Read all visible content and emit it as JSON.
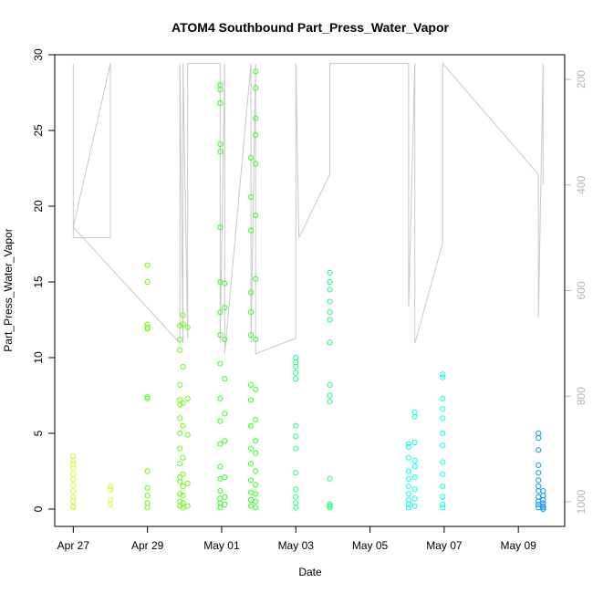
{
  "chart_data": {
    "type": "scatter",
    "title": "ATOM4 Southbound Part_Press_Water_Vapor",
    "xlabel": "Date",
    "ylabel": "Part_Press_Water_Vapor",
    "x_type": "date",
    "xlim": [
      "2018-04-26T12:00",
      "2018-05-10T06:00"
    ],
    "ylim": [
      0,
      30
    ],
    "x_ticks": [
      {
        "value": "2018-04-27",
        "label": "Apr 27"
      },
      {
        "value": "2018-04-29",
        "label": "Apr 29"
      },
      {
        "value": "2018-05-01",
        "label": "May 01"
      },
      {
        "value": "2018-05-03",
        "label": "May 03"
      },
      {
        "value": "2018-05-05",
        "label": "May 05"
      },
      {
        "value": "2018-05-07",
        "label": "May 07"
      },
      {
        "value": "2018-05-09",
        "label": "May 09"
      }
    ],
    "y_ticks": [
      0,
      5,
      10,
      15,
      20,
      25,
      30
    ],
    "secondary_axis": {
      "side": "right",
      "reversed": true,
      "range": [
        1030,
        170
      ],
      "ticks": [
        200,
        400,
        600,
        800,
        1000
      ],
      "color": "#b5b5b5"
    },
    "grid": false,
    "marker": "open-circle",
    "color_note": "points colored by date, yellow-green to azure",
    "series": [
      {
        "color": "#ccff33",
        "points": [
          [
            "2018-04-27T00:00",
            0.2
          ],
          [
            "2018-04-27T00:00",
            0.5
          ],
          [
            "2018-04-27T00:00",
            0.8
          ],
          [
            "2018-04-27T00:00",
            1.2
          ],
          [
            "2018-04-27T00:00",
            1.6
          ],
          [
            "2018-04-27T00:00",
            2.0
          ],
          [
            "2018-04-27T00:00",
            2.3
          ],
          [
            "2018-04-27T00:00",
            2.7
          ],
          [
            "2018-04-27T00:00",
            3.0
          ],
          [
            "2018-04-27T00:00",
            3.2
          ],
          [
            "2018-04-27T00:00",
            3.5
          ],
          [
            "2018-04-27T00:00",
            0.1
          ],
          [
            "2018-04-28T00:00",
            0.3
          ],
          [
            "2018-04-28T00:00",
            0.6
          ],
          [
            "2018-04-28T00:00",
            1.3
          ],
          [
            "2018-04-28T00:00",
            1.5
          ]
        ]
      },
      {
        "color": "#66ff11",
        "points": [
          [
            "2018-04-29T00:00",
            0.1
          ],
          [
            "2018-04-29T00:00",
            0.4
          ],
          [
            "2018-04-29T00:00",
            0.9
          ],
          [
            "2018-04-29T00:00",
            1.4
          ],
          [
            "2018-04-29T00:00",
            2.5
          ],
          [
            "2018-04-29T00:00",
            7.3
          ],
          [
            "2018-04-29T00:00",
            7.4
          ],
          [
            "2018-04-29T00:00",
            11.9
          ],
          [
            "2018-04-29T00:00",
            12.0
          ],
          [
            "2018-04-29T00:00",
            12.2
          ],
          [
            "2018-04-29T00:00",
            15.0
          ],
          [
            "2018-04-29T00:00",
            16.1
          ],
          [
            "2018-04-29T21:00",
            0.2
          ],
          [
            "2018-04-29T21:00",
            0.5
          ],
          [
            "2018-04-29T21:00",
            1.0
          ],
          [
            "2018-04-29T21:00",
            1.8
          ],
          [
            "2018-04-29T21:00",
            2.1
          ],
          [
            "2018-04-29T21:00",
            3.0
          ],
          [
            "2018-04-29T21:00",
            4.0
          ],
          [
            "2018-04-29T21:00",
            5.0
          ],
          [
            "2018-04-29T21:00",
            6.0
          ],
          [
            "2018-04-29T21:00",
            6.9
          ],
          [
            "2018-04-29T21:00",
            7.2
          ],
          [
            "2018-04-29T21:00",
            8.2
          ],
          [
            "2018-04-29T21:00",
            10.5
          ],
          [
            "2018-04-29T21:00",
            11.2
          ],
          [
            "2018-04-29T21:00",
            12.1
          ],
          [
            "2018-04-29T23:00",
            0.1
          ],
          [
            "2018-04-29T23:00",
            0.4
          ],
          [
            "2018-04-29T23:00",
            0.9
          ],
          [
            "2018-04-29T23:00",
            1.5
          ],
          [
            "2018-04-29T23:00",
            2.3
          ],
          [
            "2018-04-29T23:00",
            3.4
          ],
          [
            "2018-04-29T23:00",
            5.5
          ],
          [
            "2018-04-29T23:00",
            7.0
          ],
          [
            "2018-04-29T23:00",
            9.4
          ],
          [
            "2018-04-29T23:00",
            12.2
          ],
          [
            "2018-04-29T23:00",
            12.8
          ],
          [
            "2018-04-30T02:00",
            0.2
          ],
          [
            "2018-04-30T02:00",
            1.7
          ],
          [
            "2018-04-30T02:00",
            4.9
          ],
          [
            "2018-04-30T02:00",
            7.3
          ],
          [
            "2018-04-30T02:00",
            12.0
          ]
        ]
      },
      {
        "color": "#33ff22",
        "points": [
          [
            "2018-04-30T23:00",
            0.1
          ],
          [
            "2018-04-30T23:00",
            0.4
          ],
          [
            "2018-04-30T23:00",
            0.7
          ],
          [
            "2018-04-30T23:00",
            1.2
          ],
          [
            "2018-04-30T23:00",
            2.0
          ],
          [
            "2018-04-30T23:00",
            2.8
          ],
          [
            "2018-04-30T23:00",
            4.3
          ],
          [
            "2018-04-30T23:00",
            5.8
          ],
          [
            "2018-04-30T23:00",
            7.3
          ],
          [
            "2018-04-30T23:00",
            9.6
          ],
          [
            "2018-04-30T23:00",
            11.5
          ],
          [
            "2018-04-30T23:00",
            13.0
          ],
          [
            "2018-04-30T23:00",
            15.0
          ],
          [
            "2018-04-30T23:00",
            18.6
          ],
          [
            "2018-04-30T23:00",
            23.6
          ],
          [
            "2018-04-30T23:00",
            24.1
          ],
          [
            "2018-04-30T23:00",
            26.8
          ],
          [
            "2018-04-30T23:00",
            27.7
          ],
          [
            "2018-04-30T23:00",
            28.0
          ],
          [
            "2018-05-01T02:00",
            0.3
          ],
          [
            "2018-05-01T02:00",
            0.8
          ],
          [
            "2018-05-01T02:00",
            2.1
          ],
          [
            "2018-05-01T02:00",
            4.5
          ],
          [
            "2018-05-01T02:00",
            6.3
          ],
          [
            "2018-05-01T02:00",
            8.6
          ],
          [
            "2018-05-01T02:00",
            11.2
          ],
          [
            "2018-05-01T02:00",
            13.3
          ],
          [
            "2018-05-01T02:00",
            14.9
          ],
          [
            "2018-05-01T19:00",
            0.2
          ],
          [
            "2018-05-01T19:00",
            0.6
          ],
          [
            "2018-05-01T19:00",
            1.1
          ],
          [
            "2018-05-01T19:00",
            1.9
          ],
          [
            "2018-05-01T19:00",
            3.0
          ],
          [
            "2018-05-01T19:00",
            4.0
          ],
          [
            "2018-05-01T19:00",
            5.5
          ],
          [
            "2018-05-01T19:00",
            7.2
          ],
          [
            "2018-05-01T19:00",
            8.2
          ],
          [
            "2018-05-01T19:00",
            11.5
          ],
          [
            "2018-05-01T19:00",
            13.0
          ],
          [
            "2018-05-01T19:00",
            14.3
          ],
          [
            "2018-05-01T19:00",
            18.4
          ],
          [
            "2018-05-01T19:00",
            20.6
          ],
          [
            "2018-05-01T19:00",
            23.2
          ],
          [
            "2018-05-01T22:00",
            0.1
          ],
          [
            "2018-05-01T22:00",
            0.5
          ],
          [
            "2018-05-01T22:00",
            1.0
          ],
          [
            "2018-05-01T22:00",
            1.6
          ],
          [
            "2018-05-01T22:00",
            2.5
          ],
          [
            "2018-05-01T22:00",
            3.7
          ],
          [
            "2018-05-01T22:00",
            4.5
          ],
          [
            "2018-05-01T22:00",
            5.9
          ],
          [
            "2018-05-01T22:00",
            7.9
          ],
          [
            "2018-05-01T22:00",
            11.2
          ],
          [
            "2018-05-01T22:00",
            15.2
          ],
          [
            "2018-05-01T22:00",
            19.4
          ],
          [
            "2018-05-01T22:00",
            22.8
          ],
          [
            "2018-05-01T22:00",
            24.7
          ],
          [
            "2018-05-01T22:00",
            25.8
          ],
          [
            "2018-05-01T22:00",
            27.8
          ],
          [
            "2018-05-01T22:00",
            28.9
          ]
        ]
      },
      {
        "color": "#22ff77",
        "points": [
          [
            "2018-05-03T00:00",
            0.1
          ],
          [
            "2018-05-03T00:00",
            0.4
          ],
          [
            "2018-05-03T00:00",
            0.8
          ],
          [
            "2018-05-03T00:00",
            1.3
          ],
          [
            "2018-05-03T00:00",
            2.4
          ],
          [
            "2018-05-03T00:00",
            4.0
          ],
          [
            "2018-05-03T00:00",
            4.8
          ],
          [
            "2018-05-03T00:00",
            5.5
          ],
          [
            "2018-05-03T00:00",
            8.6
          ],
          [
            "2018-05-03T00:00",
            9.0
          ],
          [
            "2018-05-03T00:00",
            9.4
          ],
          [
            "2018-05-03T00:00",
            9.7
          ],
          [
            "2018-05-03T00:00",
            10.0
          ],
          [
            "2018-05-03T22:00",
            0.1
          ],
          [
            "2018-05-03T22:00",
            0.2
          ],
          [
            "2018-05-03T22:00",
            0.3
          ],
          [
            "2018-05-03T22:00",
            2.0
          ],
          [
            "2018-05-03T22:00",
            7.1
          ],
          [
            "2018-05-03T22:00",
            7.5
          ],
          [
            "2018-05-03T22:00",
            8.2
          ],
          [
            "2018-05-03T22:00",
            11.0
          ],
          [
            "2018-05-03T22:00",
            12.5
          ],
          [
            "2018-05-03T22:00",
            13.0
          ],
          [
            "2018-05-03T22:00",
            13.7
          ],
          [
            "2018-05-03T22:00",
            14.5
          ],
          [
            "2018-05-03T22:00",
            15.0
          ],
          [
            "2018-05-03T22:00",
            15.6
          ]
        ]
      },
      {
        "color": "#11ffee",
        "points": [
          [
            "2018-05-06T01:00",
            0.1
          ],
          [
            "2018-05-06T01:00",
            0.3
          ],
          [
            "2018-05-06T01:00",
            0.6
          ],
          [
            "2018-05-06T01:00",
            1.0
          ],
          [
            "2018-05-06T01:00",
            1.5
          ],
          [
            "2018-05-06T01:00",
            2.0
          ],
          [
            "2018-05-06T01:00",
            2.5
          ],
          [
            "2018-05-06T01:00",
            3.4
          ],
          [
            "2018-05-06T01:00",
            4.1
          ],
          [
            "2018-05-06T01:00",
            4.3
          ],
          [
            "2018-05-06T05:00",
            0.2
          ],
          [
            "2018-05-06T05:00",
            0.7
          ],
          [
            "2018-05-06T05:00",
            1.3
          ],
          [
            "2018-05-06T05:00",
            2.1
          ],
          [
            "2018-05-06T05:00",
            2.8
          ],
          [
            "2018-05-06T05:00",
            3.2
          ],
          [
            "2018-05-06T05:00",
            4.4
          ],
          [
            "2018-05-06T05:00",
            6.1
          ],
          [
            "2018-05-06T05:00",
            6.4
          ],
          [
            "2018-05-06T23:00",
            0.1
          ],
          [
            "2018-05-06T23:00",
            0.3
          ],
          [
            "2018-05-06T23:00",
            0.8
          ],
          [
            "2018-05-06T23:00",
            1.5
          ],
          [
            "2018-05-06T23:00",
            2.3
          ],
          [
            "2018-05-06T23:00",
            3.1
          ],
          [
            "2018-05-06T23:00",
            4.2
          ],
          [
            "2018-05-06T23:00",
            5.0
          ],
          [
            "2018-05-06T23:00",
            6.0
          ],
          [
            "2018-05-06T23:00",
            6.6
          ],
          [
            "2018-05-06T23:00",
            7.3
          ],
          [
            "2018-05-06T23:00",
            8.7
          ],
          [
            "2018-05-06T23:00",
            8.9
          ]
        ]
      },
      {
        "color": "#1199ff",
        "points": [
          [
            "2018-05-09T13:00",
            0.1
          ],
          [
            "2018-05-09T13:00",
            0.3
          ],
          [
            "2018-05-09T13:00",
            0.5
          ],
          [
            "2018-05-09T13:00",
            0.8
          ],
          [
            "2018-05-09T13:00",
            1.2
          ],
          [
            "2018-05-09T13:00",
            1.5
          ],
          [
            "2018-05-09T13:00",
            1.9
          ],
          [
            "2018-05-09T13:00",
            2.4
          ],
          [
            "2018-05-09T13:00",
            2.9
          ],
          [
            "2018-05-09T13:00",
            3.9
          ],
          [
            "2018-05-09T13:00",
            4.7
          ],
          [
            "2018-05-09T13:00",
            5.0
          ],
          [
            "2018-05-09T16:00",
            0.0
          ],
          [
            "2018-05-09T16:00",
            0.2
          ],
          [
            "2018-05-09T16:00",
            0.4
          ],
          [
            "2018-05-09T16:00",
            0.6
          ],
          [
            "2018-05-09T16:00",
            0.9
          ],
          [
            "2018-05-09T16:00",
            1.2
          ],
          [
            "2018-05-09T16:00",
            0.1
          ]
        ]
      }
    ],
    "gray_line": {
      "color": "#c8c8c8",
      "axis": "secondary",
      "points": [
        [
          "2018-04-27T00:00",
          170
        ],
        [
          "2018-04-27T00:00",
          500
        ],
        [
          "2018-04-28T00:00",
          500
        ],
        [
          "2018-04-28T00:00",
          170
        ],
        [
          "2018-04-27T00:00",
          480
        ],
        [
          "2018-04-29T21:00",
          700
        ],
        [
          "2018-04-29T21:00",
          170
        ],
        [
          "2018-04-29T23:00",
          700
        ],
        [
          "2018-04-29T23:00",
          170
        ],
        [
          "2018-04-30T02:00",
          690
        ],
        [
          "2018-04-30T02:00",
          170
        ],
        [
          "2018-04-30T23:00",
          170
        ],
        [
          "2018-04-30T23:00",
          700
        ],
        [
          "2018-05-01T02:00",
          170
        ],
        [
          "2018-05-01T02:00",
          720
        ],
        [
          "2018-05-01T19:00",
          170
        ],
        [
          "2018-05-01T19:00",
          700
        ],
        [
          "2018-05-01T22:00",
          170
        ],
        [
          "2018-05-01T22:00",
          720
        ],
        [
          "2018-05-03T00:00",
          690
        ],
        [
          "2018-05-03T00:00",
          170
        ],
        [
          "2018-05-03T02:00",
          500
        ],
        [
          "2018-05-03T22:00",
          380
        ],
        [
          "2018-05-03T22:00",
          170
        ],
        [
          "2018-05-06T01:00",
          170
        ],
        [
          "2018-05-06T01:00",
          630
        ],
        [
          "2018-05-06T05:00",
          170
        ],
        [
          "2018-05-06T05:00",
          700
        ],
        [
          "2018-05-06T23:00",
          510
        ],
        [
          "2018-05-06T23:00",
          170
        ],
        [
          "2018-05-09T13:00",
          380
        ],
        [
          "2018-05-09T13:00",
          650
        ],
        [
          "2018-05-09T16:00",
          170
        ],
        [
          "2018-05-09T16:00",
          400
        ]
      ]
    }
  }
}
